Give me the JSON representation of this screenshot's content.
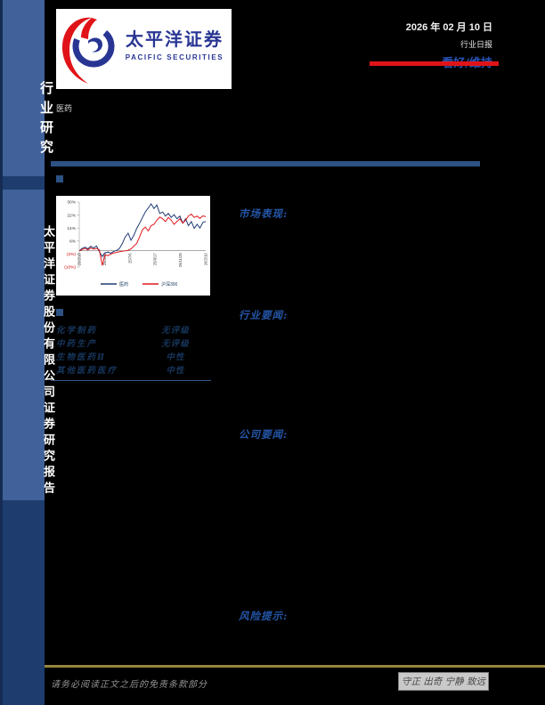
{
  "meta": {
    "date": "2026 年 02 月 10 日",
    "report_type": "行业日报",
    "rating": "看好/维持"
  },
  "sidebar": {
    "top_label": "行业研究",
    "bottom_label": "太平洋证券股份有限公司证券研究报告"
  },
  "logo": {
    "cn": "太平洋证券",
    "en": "PACIFIC SECURITIES"
  },
  "industry_label": "医药",
  "headings": {
    "market": "市场表现:",
    "industry_news": "行业要闻:",
    "company_news": "公司要闻:",
    "risk": "风险提示:"
  },
  "ratings_table": {
    "rows": [
      {
        "name": "化学制药",
        "rating": "无评级"
      },
      {
        "name": "中药生产",
        "rating": "无评级"
      },
      {
        "name": "生物医药Ⅱ",
        "rating": "中性"
      },
      {
        "name": "其他医药医疗",
        "rating": "中性"
      }
    ]
  },
  "footer": {
    "disclaimer": "请务必阅读正文之后的免责条款部分",
    "motto": "守正 出奇 宁静 致远"
  },
  "colors": {
    "sidebar_light": "#40619a",
    "sidebar_dark": "#1e3c6d",
    "accent_blue_bar": "#2d5284",
    "rating_blue": "#2b55bb",
    "rating_red_bar": "#e01418",
    "footer_gold": "#97843e",
    "series_pharma": "#1f3b73",
    "series_index": "#e0161c",
    "neg_tick": "#cc0000"
  },
  "chart_data": {
    "type": "line",
    "title": "",
    "xlabel": "",
    "ylabel": "",
    "ylim": [
      -10,
      30
    ],
    "yticks": [
      30,
      22,
      14,
      6,
      -2,
      -10
    ],
    "ytick_labels": [
      "30%",
      "22%",
      "14%",
      "6%",
      "(2%)",
      "(10%)"
    ],
    "xtick_labels": [
      "25/2/10",
      "25/4/23",
      "25/7/6",
      "25/9/17",
      "25/11/29",
      "26/2/10"
    ],
    "grid": false,
    "legend_position": "bottom",
    "series": [
      {
        "name": "医药",
        "color": "#1f3b73",
        "values": [
          0,
          1.5,
          2.2,
          1.2,
          2.8,
          1.8,
          3.0,
          -0.5,
          -3.5,
          -1.2,
          -0.8,
          -1.5,
          -0.3,
          0.2,
          1.5,
          4.5,
          8.5,
          10.8,
          6.5,
          9.5,
          13.8,
          17.0,
          20.5,
          23.9,
          26.4,
          28.9,
          26.0,
          28.2,
          23.0,
          23.9,
          21.4,
          23.0,
          20.5,
          22.2,
          19.7,
          21.4,
          17.0,
          19.7,
          15.5,
          18.0,
          13.8,
          16.3,
          14.0,
          17.5,
          18.0
        ]
      },
      {
        "name": "沪深300",
        "color": "#e0161c",
        "values": [
          0,
          0.8,
          1.5,
          0.5,
          1.8,
          1.0,
          1.5,
          0.5,
          -9.0,
          -2.5,
          -3.0,
          -2.0,
          -1.3,
          -1.0,
          -0.6,
          -0.3,
          0.0,
          0.3,
          1.2,
          2.9,
          4.5,
          8.7,
          13.0,
          14.6,
          12.2,
          15.5,
          16.3,
          18.8,
          20.8,
          19.7,
          18.0,
          20.5,
          18.8,
          16.3,
          18.0,
          19.7,
          17.0,
          18.8,
          21.4,
          22.6,
          20.5,
          21.4,
          20.0,
          21.5,
          21.0
        ]
      }
    ]
  }
}
